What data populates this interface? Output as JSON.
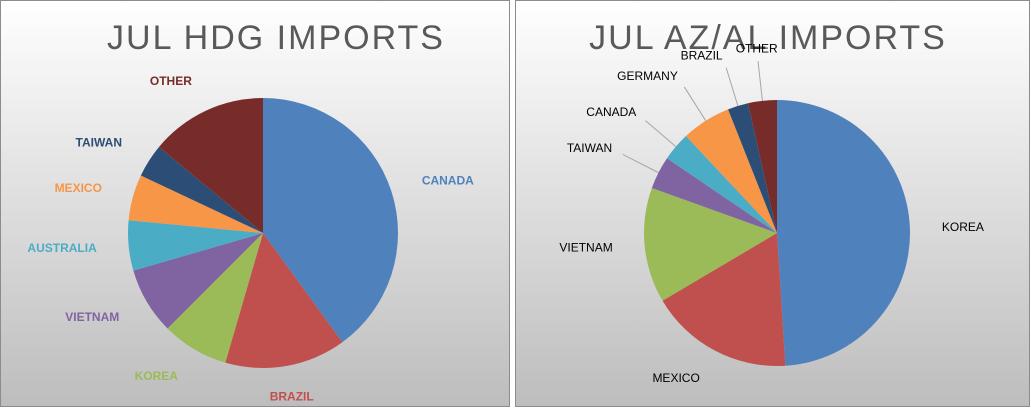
{
  "chart_data": [
    {
      "type": "pie",
      "title": "JUL HDG IMPORTS",
      "categories": [
        "CANADA",
        "BRAZIL",
        "KOREA",
        "VIETNAM",
        "AUSTRALIA",
        "MEXICO",
        "TAIWAN",
        "OTHER"
      ],
      "values": [
        40,
        14.5,
        8,
        8,
        6,
        5.5,
        4,
        14
      ],
      "colors": [
        "#4f81bd",
        "#c0504d",
        "#9bbb59",
        "#8064a2",
        "#4bacc6",
        "#f79646",
        "#2c4d75",
        "#772c2a"
      ],
      "label_color": "slice"
    },
    {
      "type": "pie",
      "title": "JUL AZ/AL IMPORTS",
      "categories": [
        "KOREA",
        "MEXICO",
        "VIETNAM",
        "TAIWAN",
        "CANADA",
        "GERMANY",
        "BRAZIL",
        "OTHER"
      ],
      "values": [
        49,
        17.5,
        14,
        4,
        3.5,
        6,
        2.5,
        3.5
      ],
      "colors": [
        "#4f81bd",
        "#c0504d",
        "#9bbb59",
        "#8064a2",
        "#4bacc6",
        "#f79646",
        "#2c4d75",
        "#772c2a"
      ],
      "label_color": "#000000"
    }
  ]
}
